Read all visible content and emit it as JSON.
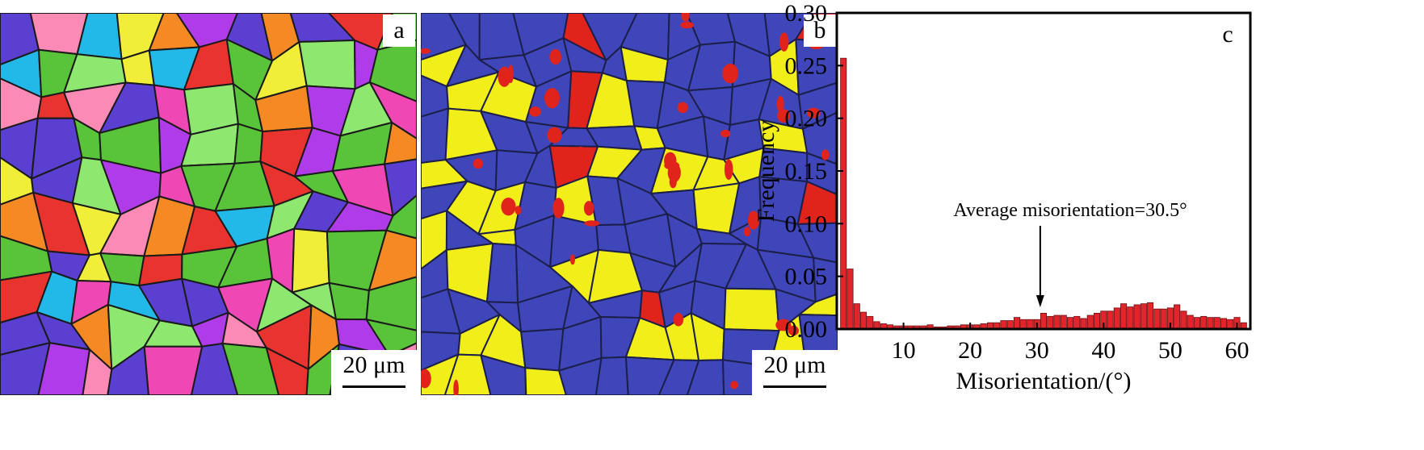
{
  "panels": [
    {
      "letter": "a",
      "scale_label": "20 μm",
      "description_colors": [
        "#e8332e",
        "#5a3fd0",
        "#59c33a",
        "#ef48b4",
        "#22b9e9",
        "#f58a25",
        "#b03be8",
        "#f0ee39",
        "#8ee86f",
        "#fb8ab4"
      ]
    },
    {
      "letter": "b",
      "scale_label": "20 μm",
      "description_colors": [
        "#3f46b9",
        "#f2ee19",
        "#e0231b"
      ]
    }
  ],
  "chart_data": {
    "type": "bar",
    "panel_letter": "c",
    "xlabel": "Misorientation/(°)",
    "ylabel": "Frequency",
    "xlim": [
      0,
      62
    ],
    "ylim": [
      0,
      0.3
    ],
    "x_ticks": [
      "10",
      "20",
      "30",
      "40",
      "50",
      "60"
    ],
    "y_ticks": [
      "0.00",
      "0.05",
      "0.10",
      "0.15",
      "0.20",
      "0.25",
      "0.30"
    ],
    "bin_width": 1,
    "x": [
      1,
      2,
      3,
      4,
      5,
      6,
      7,
      8,
      9,
      10,
      11,
      12,
      13,
      14,
      15,
      16,
      17,
      18,
      19,
      20,
      21,
      22,
      23,
      24,
      25,
      26,
      27,
      28,
      29,
      30,
      31,
      32,
      33,
      34,
      35,
      36,
      37,
      38,
      39,
      40,
      41,
      42,
      43,
      44,
      45,
      46,
      47,
      48,
      49,
      50,
      51,
      52,
      53,
      54,
      55,
      56,
      57,
      58,
      59,
      60,
      61
    ],
    "values": [
      0.257,
      0.057,
      0.024,
      0.016,
      0.012,
      0.007,
      0.005,
      0.004,
      0.003,
      0.003,
      0.003,
      0.003,
      0.003,
      0.004,
      0.002,
      0.002,
      0.003,
      0.003,
      0.004,
      0.004,
      0.004,
      0.005,
      0.006,
      0.006,
      0.008,
      0.008,
      0.011,
      0.009,
      0.009,
      0.009,
      0.015,
      0.012,
      0.013,
      0.013,
      0.011,
      0.012,
      0.01,
      0.013,
      0.015,
      0.017,
      0.017,
      0.02,
      0.024,
      0.021,
      0.023,
      0.024,
      0.025,
      0.019,
      0.019,
      0.02,
      0.023,
      0.017,
      0.013,
      0.011,
      0.012,
      0.011,
      0.011,
      0.01,
      0.009,
      0.011,
      0.006
    ],
    "bar_color": "#e2252b",
    "annotation": {
      "text": "Average misorientation=30.5°",
      "x": 30.5
    }
  }
}
